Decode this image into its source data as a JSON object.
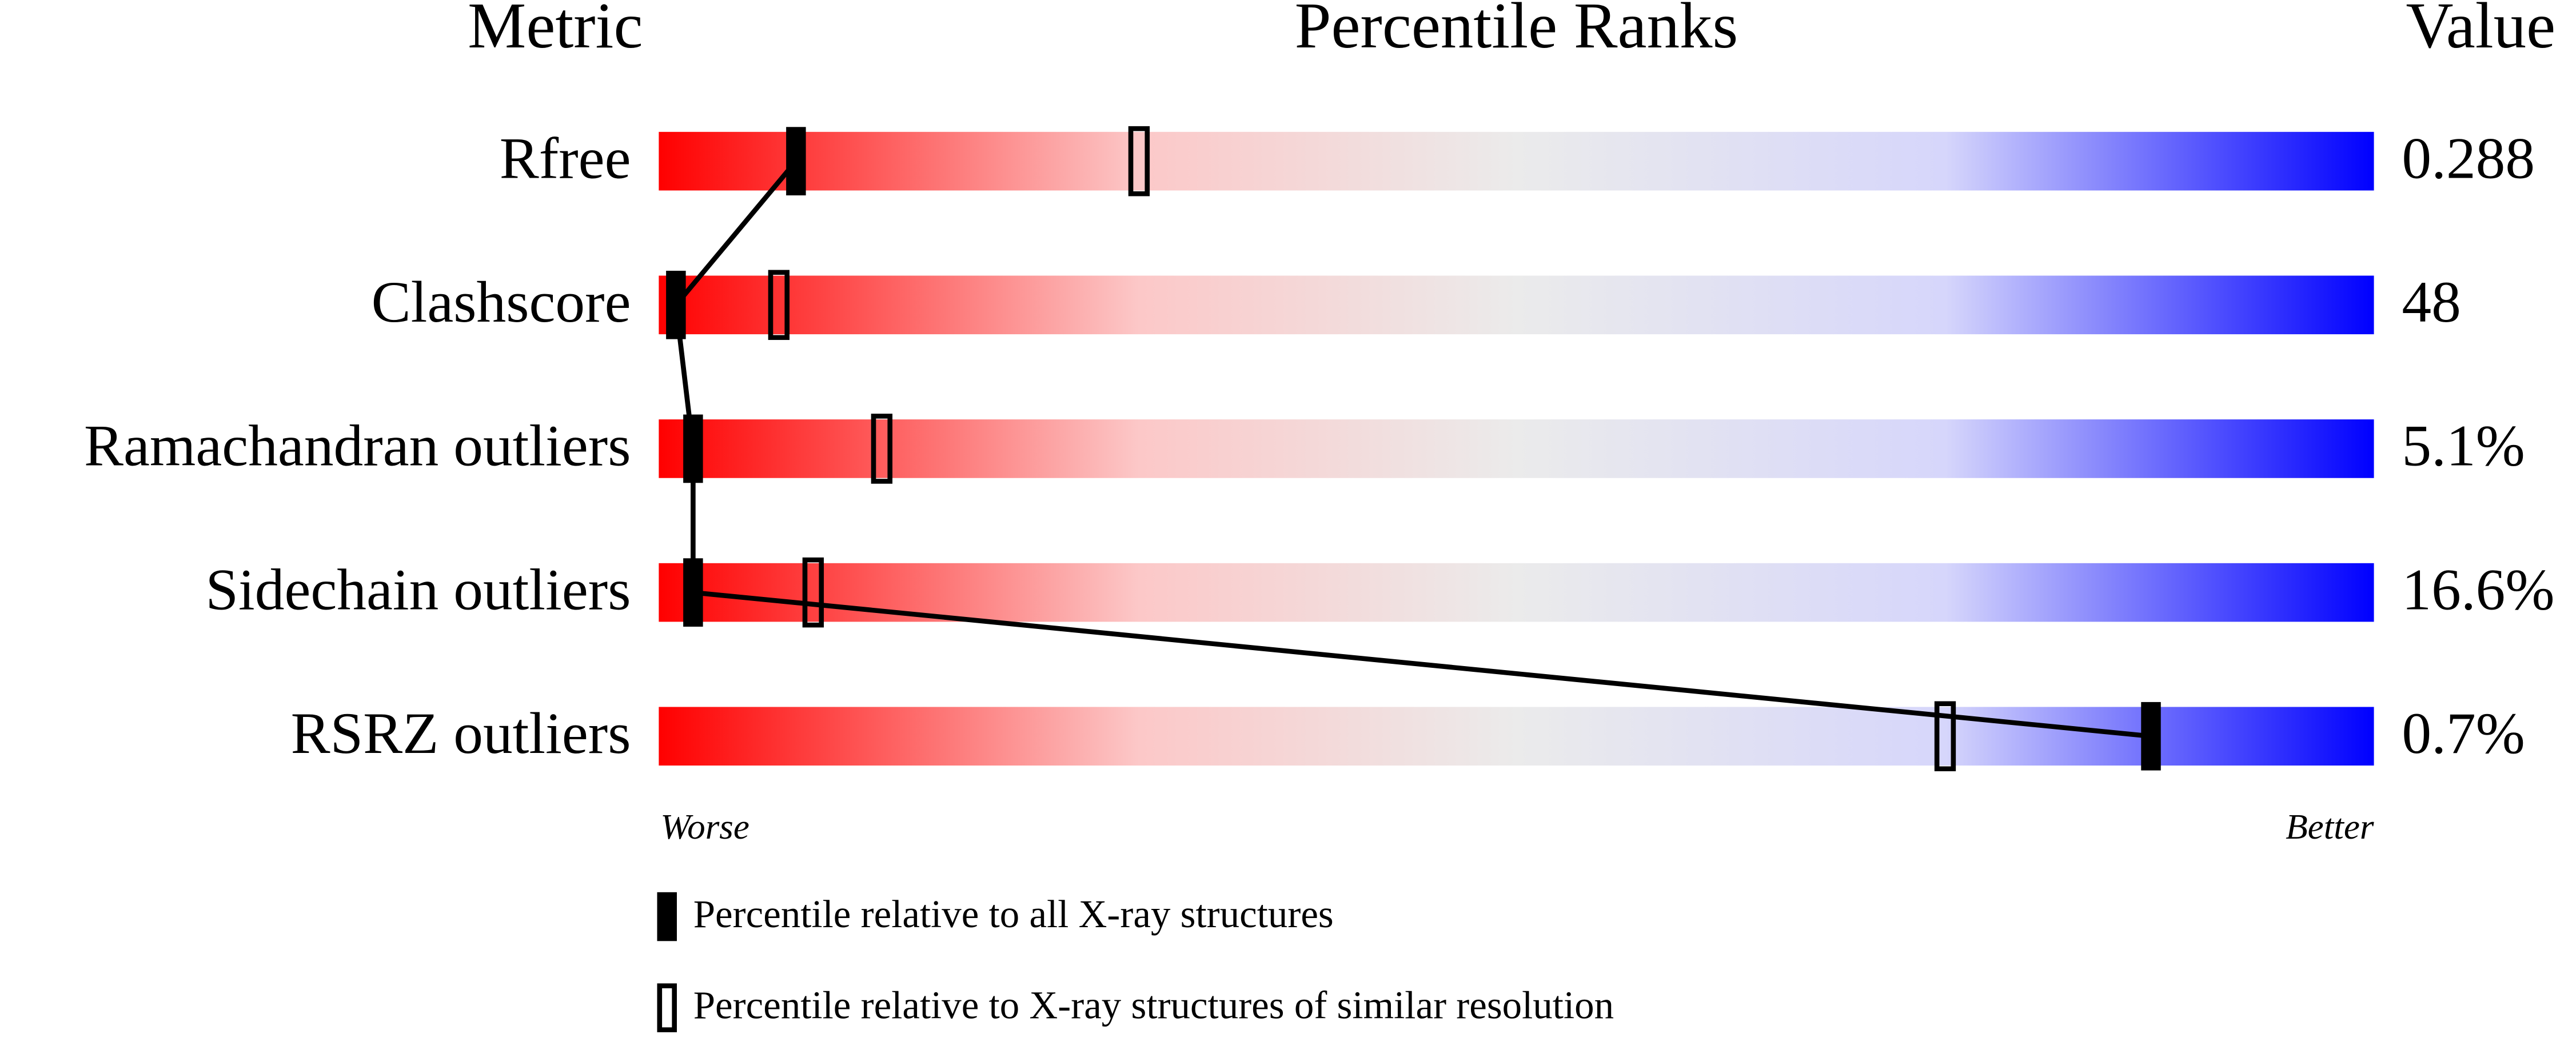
{
  "chart_data": {
    "type": "percentile-slider",
    "title": "Percentile Ranks",
    "metric_header": "Metric",
    "value_header": "Value",
    "categories": [
      "Rfree",
      "Clashscore",
      "Ramachandran outliers",
      "Sidechain outliers",
      "RSRZ outliers"
    ],
    "metric_values": [
      "0.288",
      "48",
      "5.1%",
      "16.6%",
      "0.7%"
    ],
    "xlim": [
      0,
      100
    ],
    "low_label": "Worse",
    "high_label": "Better",
    "series": [
      {
        "name": "Percentile relative to all X-ray structures",
        "style": "filled",
        "color": "#000000",
        "values": [
          8,
          1,
          2,
          2,
          87
        ]
      },
      {
        "name": "Percentile relative to X-ray structures of similar resolution",
        "style": "open",
        "color": "#000000",
        "values": [
          28,
          7,
          13,
          9,
          75
        ]
      }
    ]
  }
}
